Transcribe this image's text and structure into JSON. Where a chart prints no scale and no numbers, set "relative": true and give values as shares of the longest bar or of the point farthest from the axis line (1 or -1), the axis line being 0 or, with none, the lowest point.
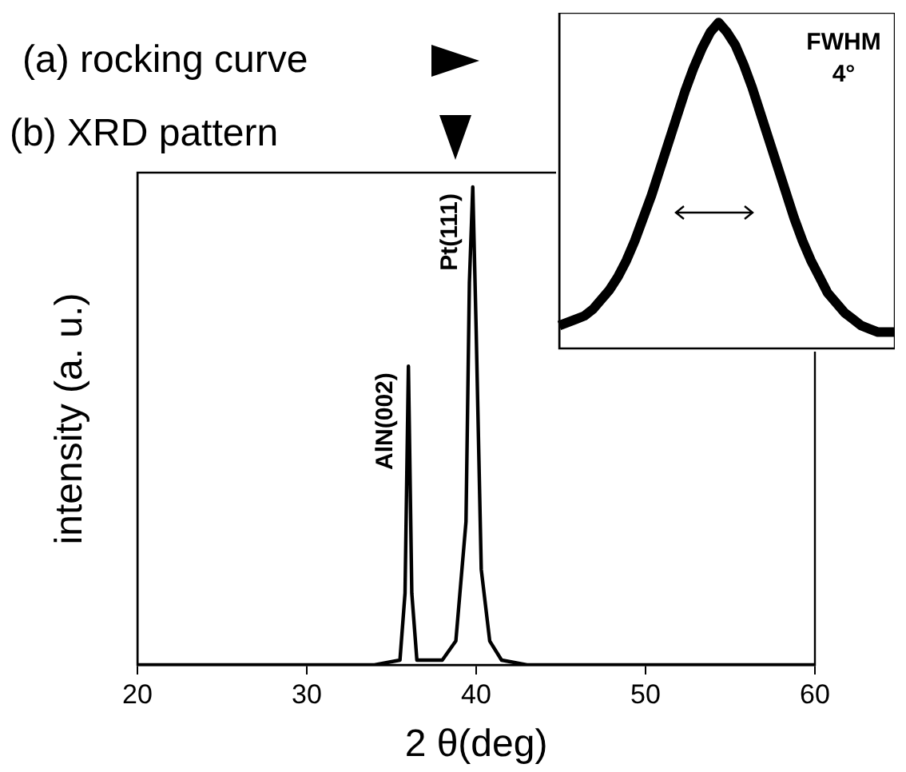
{
  "chart_data": [
    {
      "type": "line",
      "relative": true,
      "xlabel": "2 θ(deg)",
      "ylabel": "intensity (a. u.)",
      "color": "#000000",
      "x": [
        20,
        34,
        35.5,
        35.8,
        36.0,
        36.2,
        36.5,
        38,
        38.8,
        39.4,
        39.6,
        39.8,
        40.0,
        40.3,
        40.8,
        41.5,
        43,
        60
      ],
      "values": [
        0,
        0,
        0.01,
        0.15,
        0.625,
        0.15,
        0.01,
        0.01,
        0.05,
        0.3,
        0.8,
        1,
        0.7,
        0.2,
        0.05,
        0.01,
        0,
        0
      ],
      "xlim": [
        20,
        60
      ],
      "xticks": [
        20,
        30,
        40,
        50,
        60
      ],
      "grid": false,
      "legend": false,
      "marker": "none",
      "annotations": [
        "(b) XRD pattern",
        {
          "text": "AlN(002)",
          "x": 36.0,
          "y": 0.625
        },
        {
          "text": "Pt(111)",
          "x": 39.8,
          "y": 1
        }
      ]
    },
    {
      "type": "line",
      "relative": true,
      "color": "#000000",
      "grid": false,
      "legend": false,
      "marker": "none",
      "tick_labels": false,
      "categories": [
        null,
        null,
        null,
        null,
        null,
        null,
        null,
        null,
        null,
        null,
        null,
        null,
        null,
        null,
        null,
        null,
        null,
        null,
        null,
        null,
        null,
        null,
        null,
        null,
        null,
        null,
        null,
        null,
        null,
        null,
        null,
        null,
        null,
        null,
        null,
        null,
        null,
        null,
        null,
        null,
        null
      ],
      "values": [
        0.07,
        0.08,
        0.09,
        0.1,
        0.12,
        0.15,
        0.18,
        0.22,
        0.27,
        0.33,
        0.4,
        0.47,
        0.55,
        0.63,
        0.71,
        0.79,
        0.86,
        0.92,
        0.97,
        1,
        0.97,
        0.93,
        0.87,
        0.8,
        0.72,
        0.64,
        0.56,
        0.48,
        0.4,
        0.33,
        0.27,
        0.22,
        0.17,
        0.14,
        0.11,
        0.09,
        0.07,
        0.06,
        0.05,
        0.05,
        0.05
      ],
      "annotations": [
        "(a) rocking curve",
        "FWHM",
        "4°"
      ]
    }
  ]
}
